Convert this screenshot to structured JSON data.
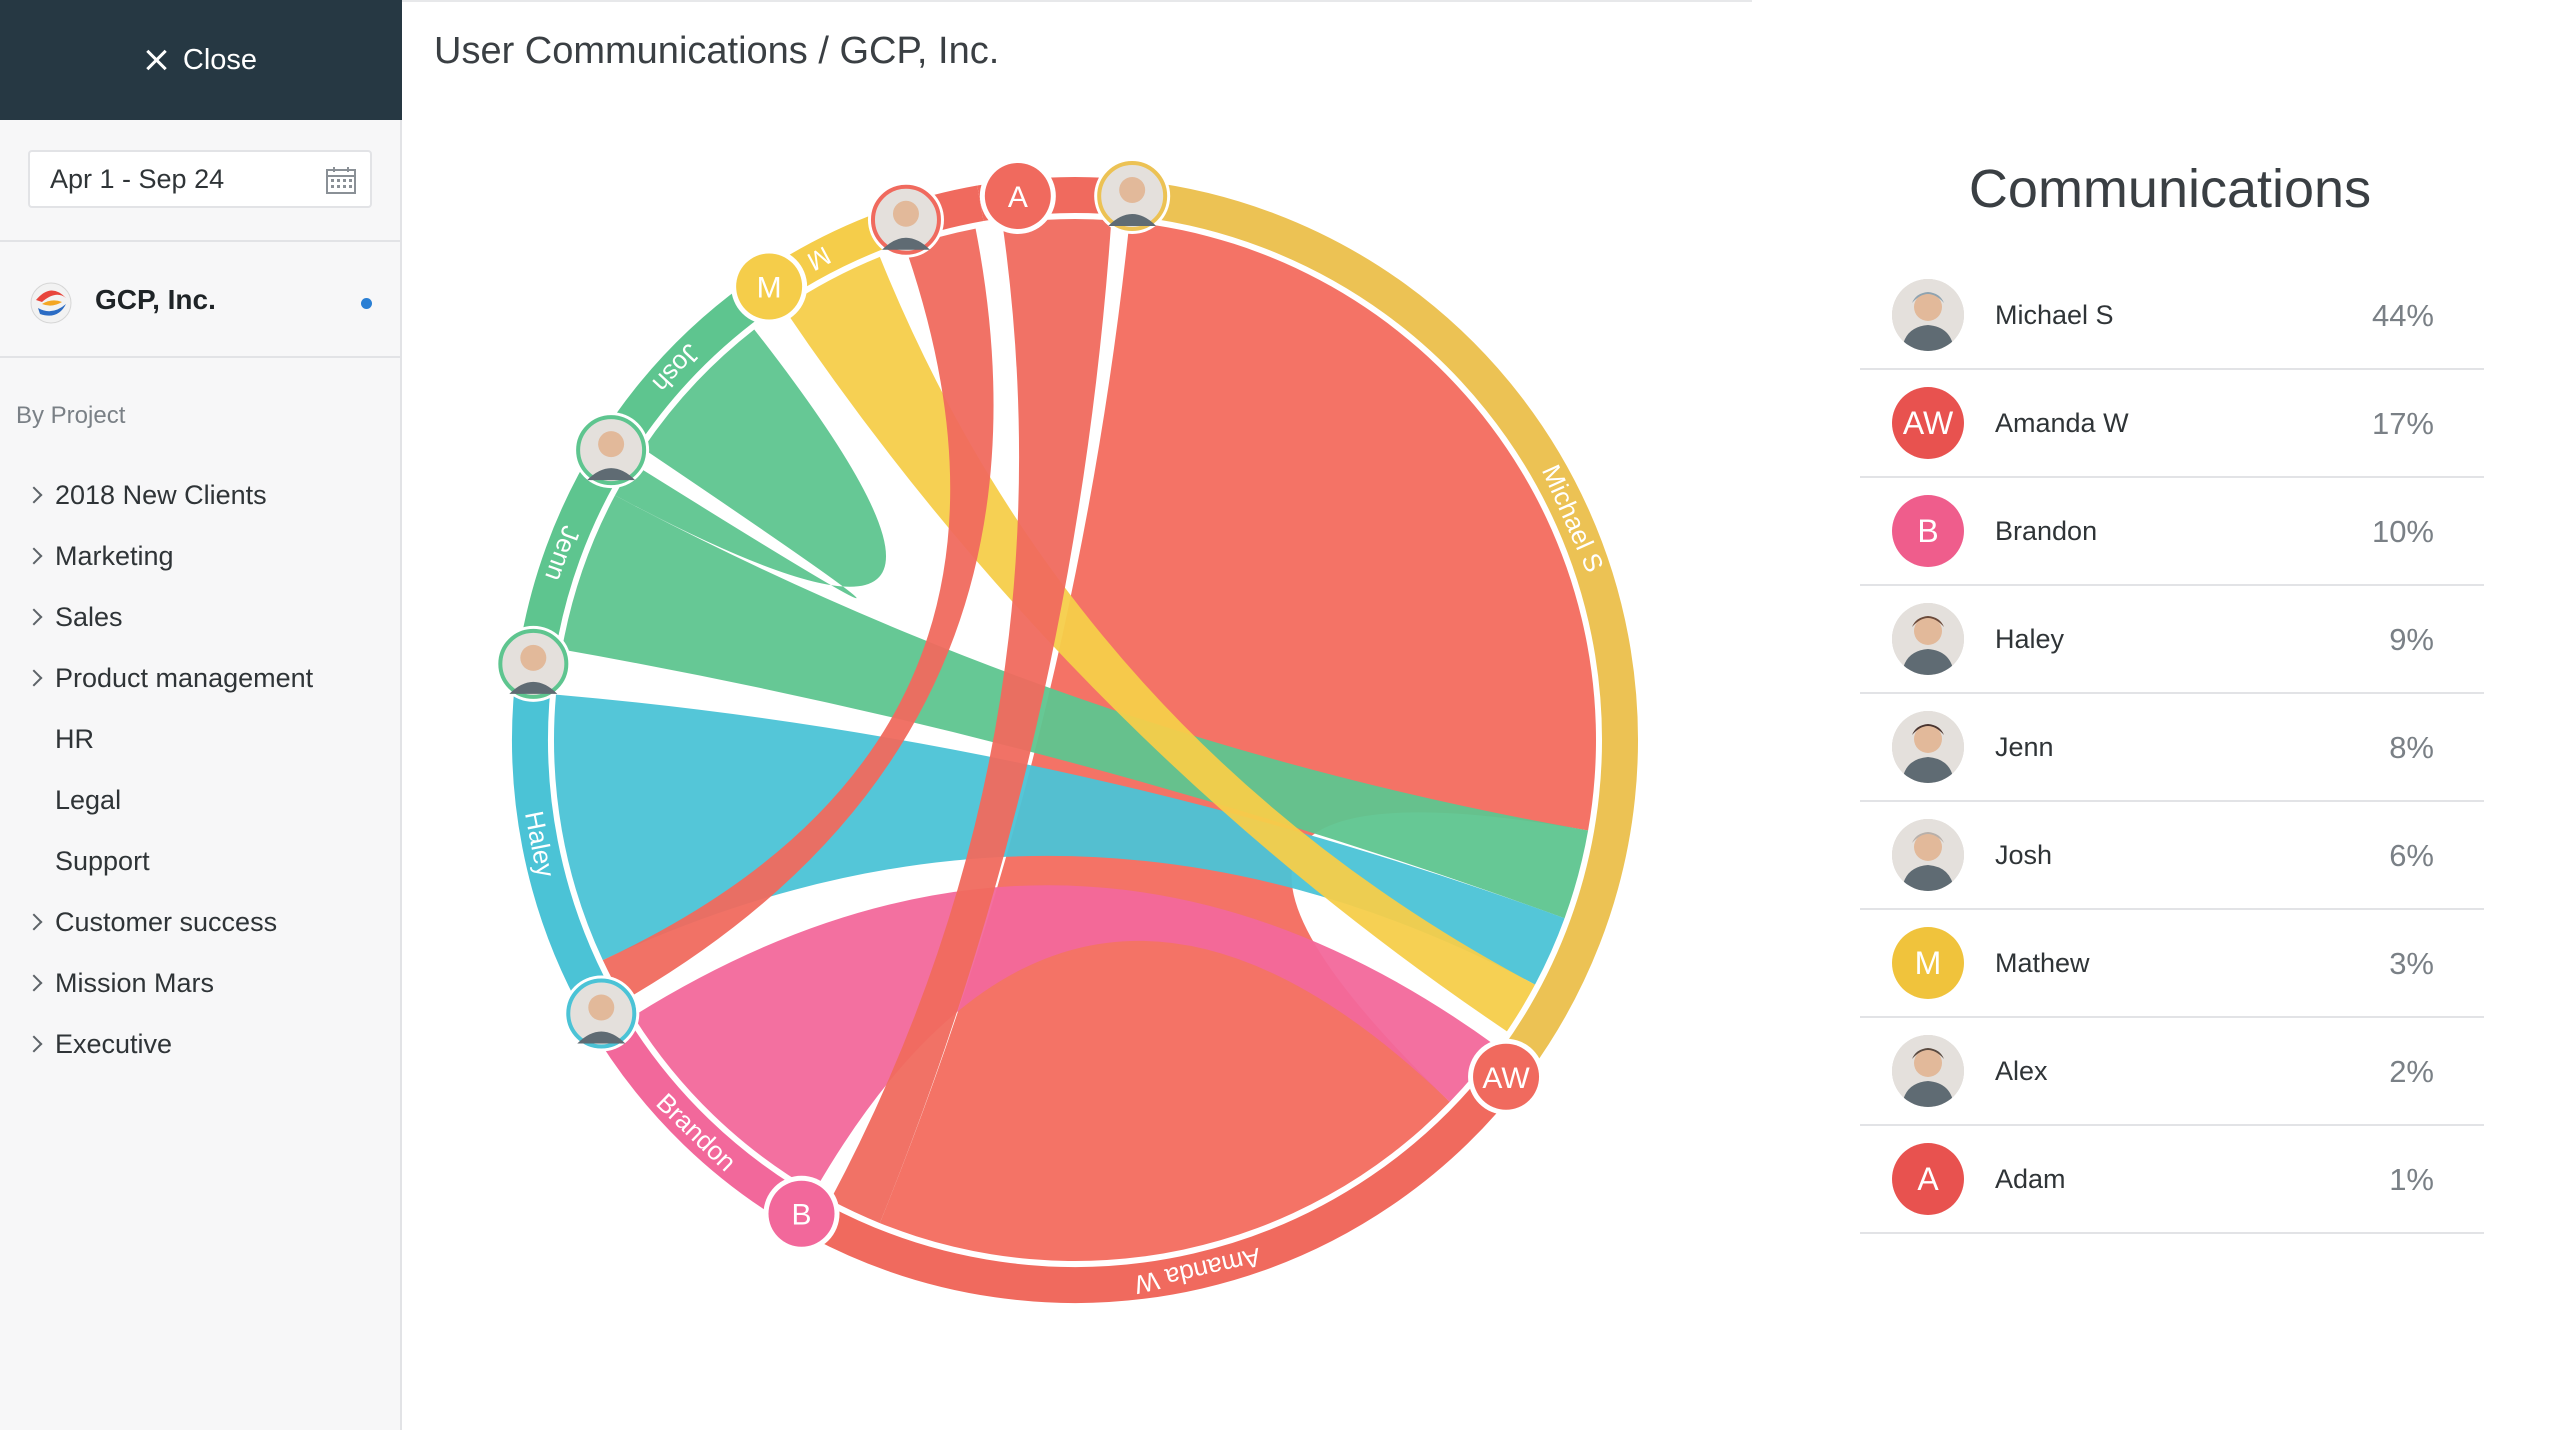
{
  "sidebar": {
    "close_label": "Close",
    "date_range": "Apr 1 - Sep 24",
    "org_name": "GCP, Inc.",
    "section_label": "By Project",
    "projects": [
      {
        "label": "2018 New Clients",
        "expandable": true
      },
      {
        "label": "Marketing",
        "expandable": true
      },
      {
        "label": "Sales",
        "expandable": true
      },
      {
        "label": "Product management",
        "expandable": true
      },
      {
        "label": "HR",
        "expandable": false
      },
      {
        "label": "Legal",
        "expandable": false
      },
      {
        "label": "Support",
        "expandable": false
      },
      {
        "label": "Customer success",
        "expandable": true
      },
      {
        "label": "Mission Mars",
        "expandable": true
      },
      {
        "label": "Executive",
        "expandable": true
      }
    ]
  },
  "header": {
    "title": "User Communications / GCP, Inc."
  },
  "communications": {
    "title": "Communications",
    "rows": [
      {
        "name": "Michael S",
        "percent": "44%",
        "avatar": "photo",
        "initials": "",
        "color": "#8fa3b0"
      },
      {
        "name": "Amanda W",
        "percent": "17%",
        "avatar": "initials",
        "initials": "AW",
        "color": "#e8524f"
      },
      {
        "name": "Brandon",
        "percent": "10%",
        "avatar": "initials",
        "initials": "B",
        "color": "#ef5d8c"
      },
      {
        "name": "Haley",
        "percent": "9%",
        "avatar": "photo",
        "initials": "",
        "color": "#6b4a3a"
      },
      {
        "name": "Jenn",
        "percent": "8%",
        "avatar": "photo",
        "initials": "",
        "color": "#4a3530"
      },
      {
        "name": "Josh",
        "percent": "6%",
        "avatar": "photo",
        "initials": "",
        "color": "#b8b0aa"
      },
      {
        "name": "Mathew",
        "percent": "3%",
        "avatar": "initials",
        "initials": "M",
        "color": "#f0c33c"
      },
      {
        "name": "Alex",
        "percent": "2%",
        "avatar": "photo",
        "initials": "",
        "color": "#5a4a40"
      },
      {
        "name": "Adam",
        "percent": "1%",
        "avatar": "initials",
        "initials": "A",
        "color": "#e8524f"
      }
    ]
  },
  "chart_data": {
    "type": "chord",
    "participants": [
      {
        "name": "Michael S",
        "label": "Michael S",
        "share": 44,
        "color": "#ecc254"
      },
      {
        "name": "Amanda W",
        "label": "Amanda W",
        "initials": "AW",
        "share": 17,
        "color": "#f06a5e"
      },
      {
        "name": "Brandon",
        "label": "Brandon",
        "initials": "B",
        "share": 10,
        "color": "#f2689b"
      },
      {
        "name": "Haley",
        "label": "Haley",
        "share": 9,
        "color": "#4bc3d6"
      },
      {
        "name": "Jenn",
        "label": "Jenn",
        "share": 8,
        "color": "#5ec58f"
      },
      {
        "name": "Josh",
        "label": "Josh",
        "share": 6,
        "color": "#5ec58f"
      },
      {
        "name": "Mathew",
        "label": "M",
        "initials": "M",
        "share": 3,
        "color": "#f5cd4a"
      },
      {
        "name": "Alex",
        "label": "",
        "share": 2,
        "color": "#f06a5e"
      },
      {
        "name": "Adam",
        "label": "",
        "initials": "A",
        "share": 1,
        "color": "#f06a5e"
      }
    ]
  }
}
